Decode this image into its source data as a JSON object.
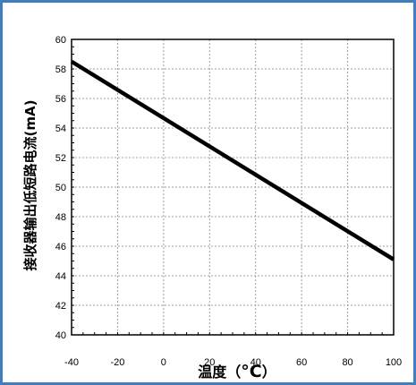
{
  "chart_data": {
    "type": "line",
    "title": "",
    "xlabel": "温度（°C）",
    "xlabel_prefix": "温度（",
    "xlabel_unit": "°C",
    "xlabel_suffix": "）",
    "ylabel": "接收器输出低短路电流(mA)",
    "xlim": [
      -40,
      100
    ],
    "ylim": [
      40,
      60
    ],
    "x_ticks": [
      -40,
      -20,
      0,
      20,
      40,
      60,
      80,
      100
    ],
    "y_ticks": [
      40,
      42,
      44,
      46,
      48,
      50,
      52,
      54,
      56,
      58,
      60
    ],
    "grid": true,
    "legend": "none",
    "series": [
      {
        "x": [
          -40,
          100
        ],
        "y": [
          58.5,
          45.1
        ]
      }
    ],
    "colors": {
      "frame_border": "#3f7fbf",
      "line": "#000000",
      "grid": "#a0a0a0"
    }
  }
}
